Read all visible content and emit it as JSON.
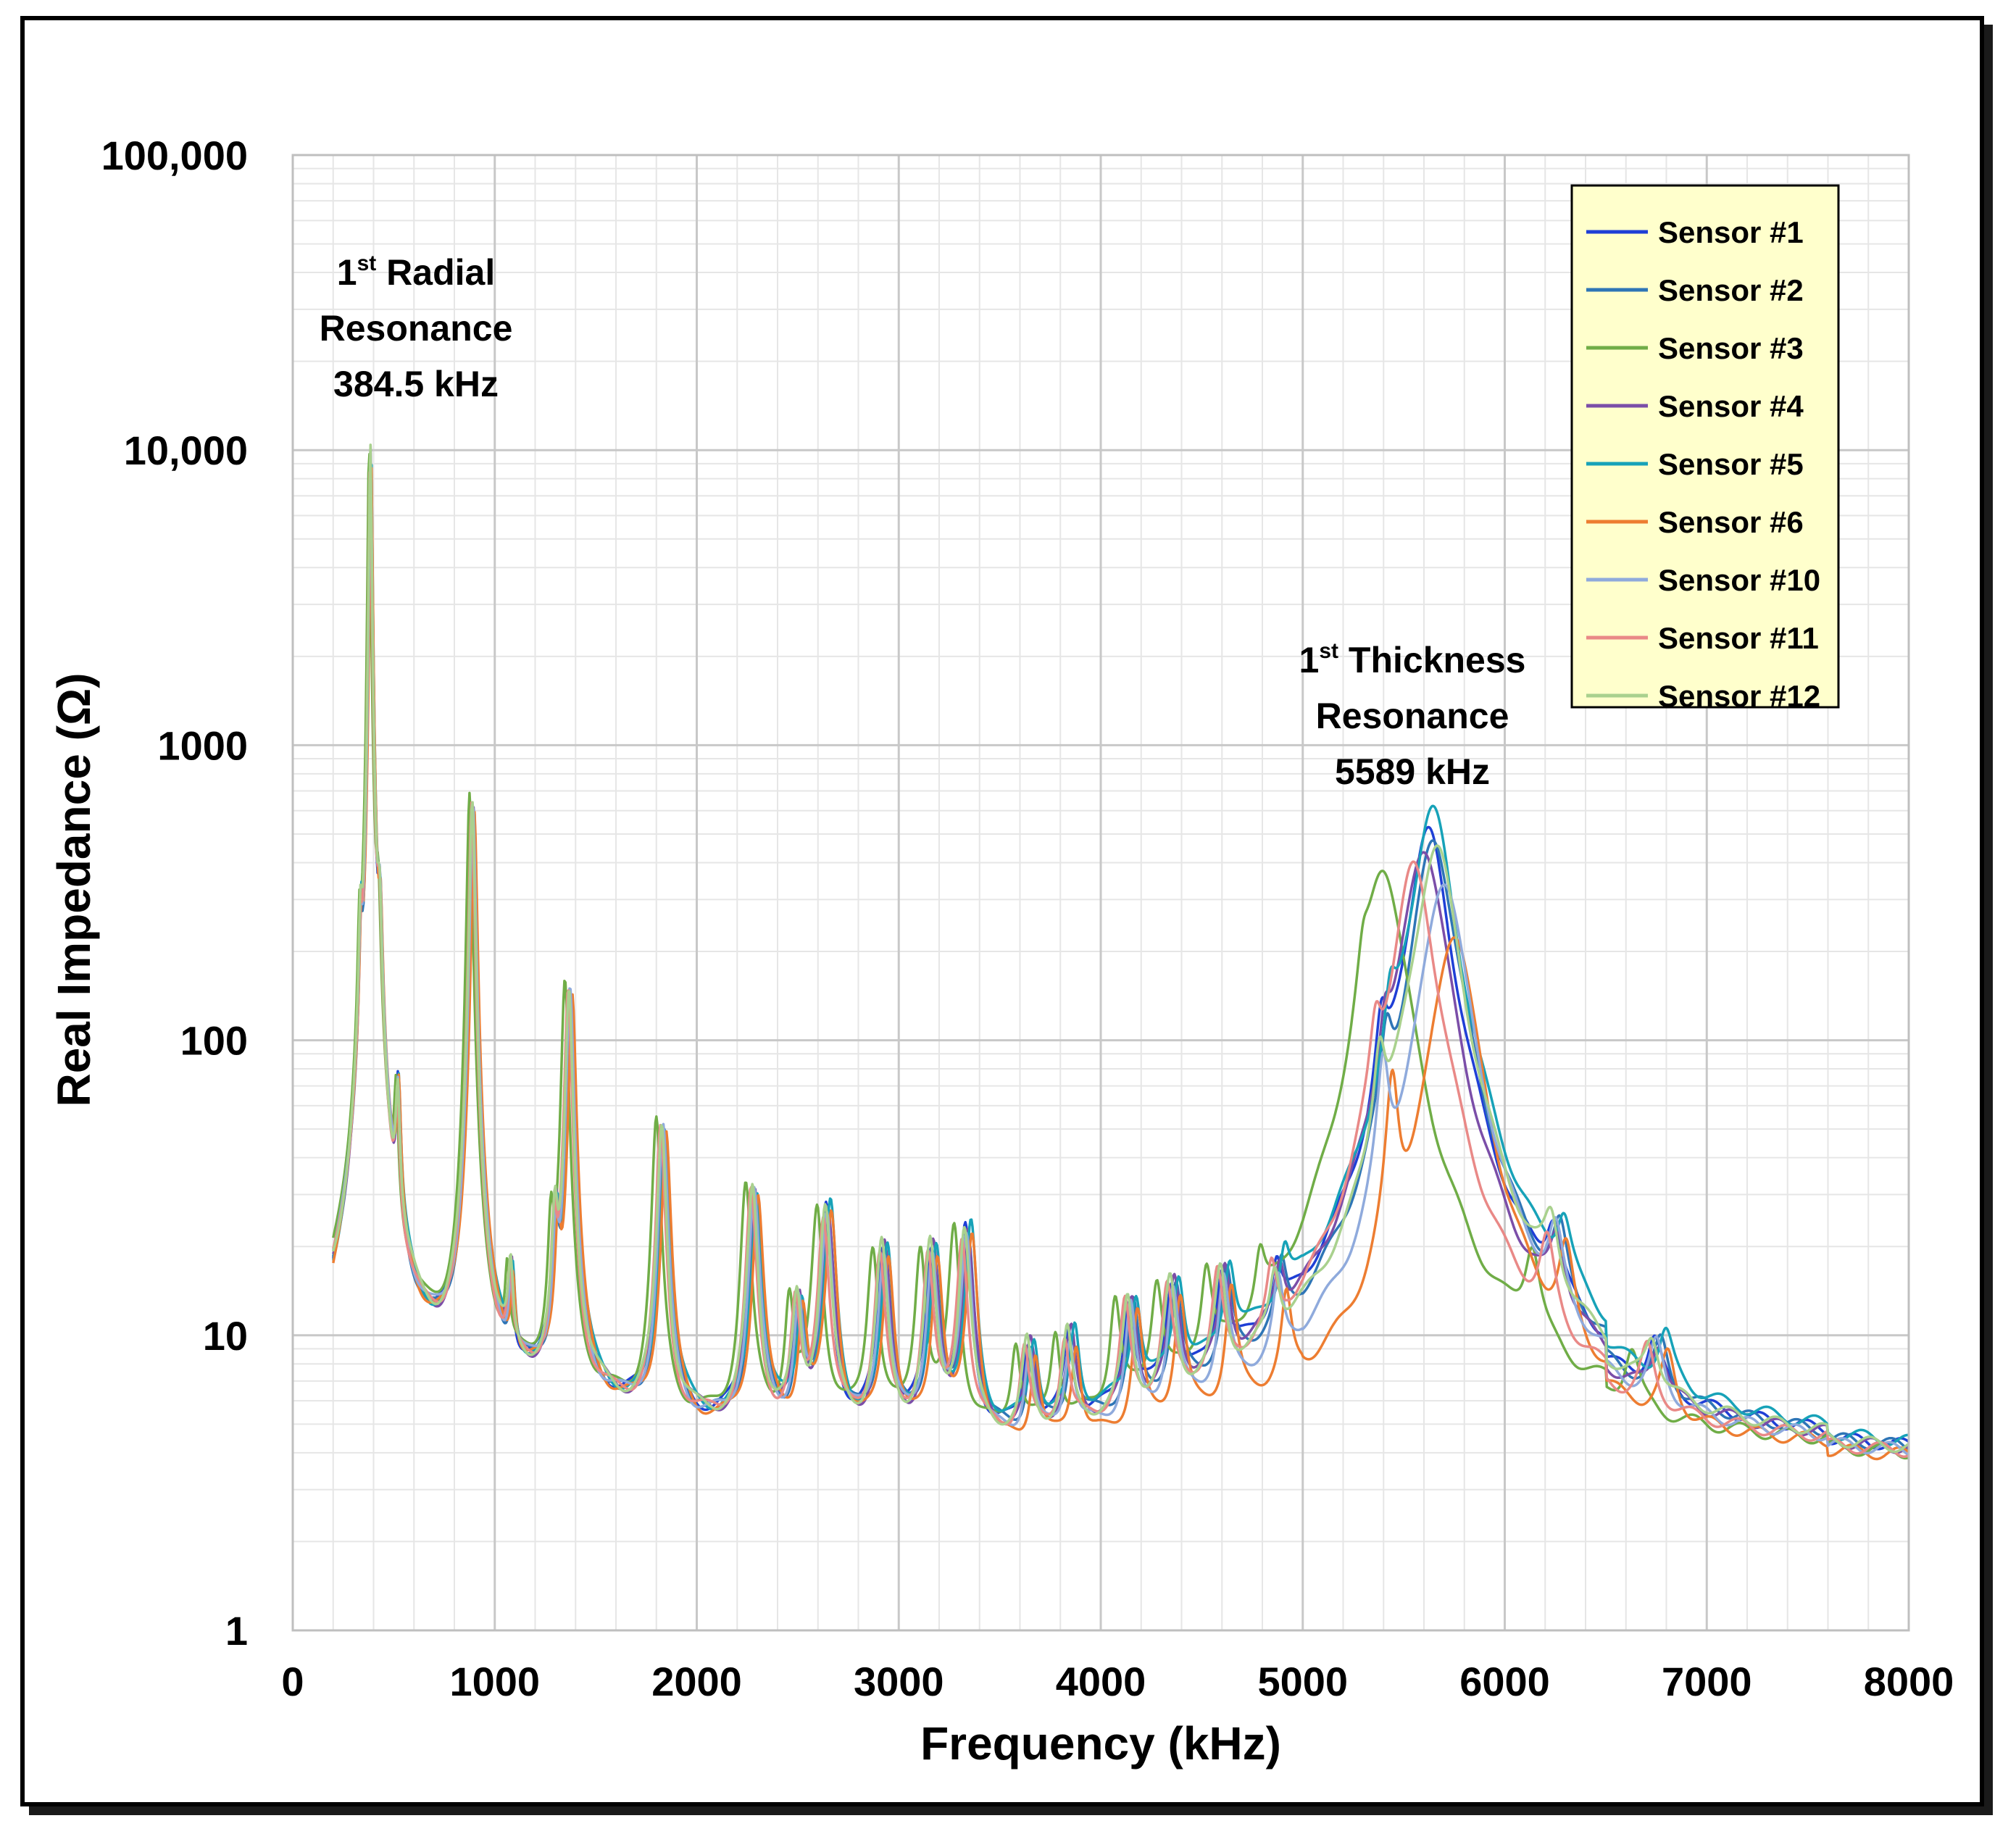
{
  "chart_data": {
    "type": "line",
    "title": "",
    "xlabel": "Frequency (kHz)",
    "ylabel": "Real Impedance (Ω)",
    "xlim": [
      0,
      8000
    ],
    "ylim": [
      1,
      100000
    ],
    "yscale": "log",
    "grid": true,
    "legend_position": "top-right",
    "x_ticks": [
      "0",
      "1000",
      "2000",
      "3000",
      "4000",
      "5000",
      "6000",
      "7000",
      "8000"
    ],
    "y_ticks": [
      "1",
      "10",
      "100",
      "1000",
      "10,000",
      "100,000"
    ],
    "x_tick_values": [
      0,
      1000,
      2000,
      3000,
      4000,
      5000,
      6000,
      7000,
      8000
    ],
    "y_tick_values": [
      1,
      10,
      100,
      1000,
      10000,
      100000
    ],
    "annotations": [
      {
        "id": "radial",
        "sup_prefix": "1",
        "sup": "st",
        "line1_rest": " Radial",
        "line2": "Resonance",
        "line3": "384.5 kHz"
      },
      {
        "id": "thickness",
        "sup_prefix": "1",
        "sup": "st",
        "line1_rest": " Thickness",
        "line2": "Resonance",
        "line3": "5589 kHz"
      }
    ],
    "series": [
      {
        "name": "Sensor #1",
        "color": "#1f3fd6",
        "shift": 0,
        "scale": 1.0,
        "tpeak": 5620,
        "tamp": 500
      },
      {
        "name": "Sensor #2",
        "color": "#2e75b6",
        "shift": 15,
        "scale": 0.95,
        "tpeak": 5650,
        "tamp": 470
      },
      {
        "name": "Sensor #3",
        "color": "#70ad47",
        "shift": -50,
        "scale": 1.05,
        "tpeak": 5400,
        "tamp": 380
      },
      {
        "name": "Sensor #4",
        "color": "#7b4ea8",
        "shift": 10,
        "scale": 1.0,
        "tpeak": 5600,
        "tamp": 450
      },
      {
        "name": "Sensor #5",
        "color": "#17a2b8",
        "shift": 25,
        "scale": 1.02,
        "tpeak": 5640,
        "tamp": 600
      },
      {
        "name": "Sensor #6",
        "color": "#ed7d31",
        "shift": 30,
        "scale": 0.98,
        "tpeak": 5750,
        "tamp": 230
      },
      {
        "name": "Sensor #10",
        "color": "#8faadc",
        "shift": 5,
        "scale": 1.0,
        "tpeak": 5700,
        "tamp": 350
      },
      {
        "name": "Sensor #11",
        "color": "#e98987",
        "shift": -15,
        "scale": 0.97,
        "tpeak": 5550,
        "tamp": 380
      },
      {
        "name": "Sensor #12",
        "color": "#a9d18e",
        "shift": -5,
        "scale": 1.03,
        "tpeak": 5660,
        "tamp": 450
      }
    ],
    "common_peaks": [
      {
        "f": 384.5,
        "amp": 10000,
        "w": 6
      },
      {
        "f": 336,
        "amp": 160,
        "w": 8
      },
      {
        "f": 430,
        "amp": 200,
        "w": 10
      },
      {
        "f": 520,
        "amp": 45,
        "w": 10
      },
      {
        "f": 890,
        "amp": 620,
        "w": 12
      },
      {
        "f": 1080,
        "amp": 8,
        "w": 12
      },
      {
        "f": 1300,
        "amp": 16,
        "w": 14
      },
      {
        "f": 1370,
        "amp": 140,
        "w": 16
      },
      {
        "f": 1830,
        "amp": 45,
        "w": 20
      },
      {
        "f": 2280,
        "amp": 26,
        "w": 24
      },
      {
        "f": 2500,
        "amp": 8,
        "w": 22
      },
      {
        "f": 2640,
        "amp": 22,
        "w": 26
      },
      {
        "f": 2920,
        "amp": 15,
        "w": 26
      },
      {
        "f": 3160,
        "amp": 15,
        "w": 26
      },
      {
        "f": 3330,
        "amp": 18,
        "w": 26
      },
      {
        "f": 3640,
        "amp": 4.6,
        "w": 24
      },
      {
        "f": 3840,
        "amp": 5.2,
        "w": 24
      },
      {
        "f": 4140,
        "amp": 7.5,
        "w": 26
      },
      {
        "f": 4350,
        "amp": 8.8,
        "w": 28
      },
      {
        "f": 4600,
        "amp": 9,
        "w": 28
      },
      {
        "f": 4870,
        "amp": 6.5,
        "w": 26
      },
      {
        "f": 5390,
        "amp": 55,
        "w": 30
      },
      {
        "f": 6240,
        "amp": 10,
        "w": 40
      },
      {
        "f": 6740,
        "amp": 4.4,
        "w": 40
      }
    ]
  }
}
